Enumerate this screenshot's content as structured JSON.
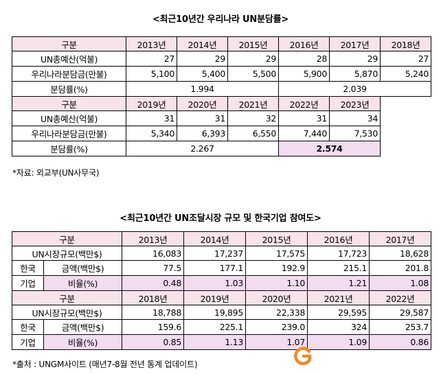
{
  "table1": {
    "title": "<최근10년간 우리나라 UN분담률>",
    "header_label": "구분",
    "years_a": [
      "2013년",
      "2014년",
      "2015년",
      "2016년",
      "2017년",
      "2018년"
    ],
    "rows_a": [
      {
        "label": "UN총예산(억불)",
        "values": [
          "27",
          "29",
          "29",
          "28",
          "29",
          "27"
        ]
      },
      {
        "label": "우리나라분담금(만불)",
        "values": [
          "5,100",
          "5,400",
          "5,500",
          "5,900",
          "5,870",
          "5,240"
        ]
      }
    ],
    "rate_label": "분담률(%)",
    "rate_a": [
      "1.994",
      "2.039"
    ],
    "years_b": [
      "2019년",
      "2020년",
      "2021년",
      "2022년",
      "2023년"
    ],
    "rows_b": [
      {
        "label": "UN총예산(억불)",
        "values": [
          "31",
          "31",
          "32",
          "31",
          "34"
        ]
      },
      {
        "label": "우리나라분담금(만불)",
        "values": [
          "5,340",
          "6,393",
          "6,550",
          "7,440",
          "7,530"
        ]
      }
    ],
    "rate_b": [
      "2.267",
      "2.574"
    ],
    "source": "*자료: 외교부(UN사무국)"
  },
  "table2": {
    "title": "<최근10년간 UN조달시장 규모 및 한국기업 참여도>",
    "header_label": "구분",
    "market_label": "UN시장규모(백만$)",
    "korea_label_1": "한국",
    "korea_label_2": "기업",
    "amount_label": "금액(백만$)",
    "ratio_label": "비율(%)",
    "years_a": [
      "2013년",
      "2014년",
      "2015년",
      "2016년",
      "2017년"
    ],
    "market_a": [
      "16,083",
      "17,237",
      "17,575",
      "17,723",
      "18,628"
    ],
    "amount_a": [
      "77.5",
      "177.1",
      "192.9",
      "215.1",
      "201.8"
    ],
    "ratio_a": [
      "0.48",
      "1.03",
      "1.10",
      "1.21",
      "1.08"
    ],
    "years_b": [
      "2018년",
      "2019년",
      "2020년",
      "2021년",
      "2022년"
    ],
    "market_b": [
      "18,788",
      "19,895",
      "22,338",
      "29,595",
      "29,587"
    ],
    "amount_b": [
      "159.6",
      "225.1",
      "239.0",
      "324",
      "253.7"
    ],
    "ratio_b": [
      "0.85",
      "1.13",
      "1.07",
      "1.09",
      "0.86"
    ],
    "source": "*출처 : UNGM사이트 (매년7-8월 전년 통계 업데이트)"
  },
  "colors": {
    "header_bg": "#f7e3e9",
    "highlight_bg": "#f2dcf0",
    "logo_orange": "#f08a24"
  }
}
